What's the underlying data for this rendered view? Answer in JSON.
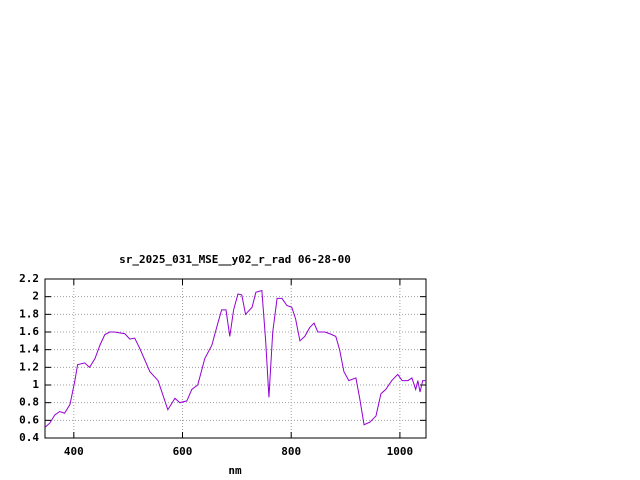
{
  "chart_data": {
    "type": "line",
    "title": "sr_2025_031_MSE__y02_r_rad 06-28-00",
    "x_label": "nm",
    "xlim": [
      347,
      1048
    ],
    "ylim": [
      0.4,
      2.2
    ],
    "xticks": [
      400,
      600,
      800,
      1000
    ],
    "yticks": [
      0.4,
      0.6,
      0.8,
      1,
      1.2,
      1.4,
      1.6,
      1.8,
      2,
      2.2
    ],
    "grid": true,
    "series": [
      {
        "color": "#9400d3",
        "x": [
          347,
          356,
          365,
          374,
          383,
          393,
          402,
          407,
          420,
          429,
          439,
          448,
          457,
          466,
          475,
          494,
          503,
          512,
          521,
          540,
          555,
          573,
          586,
          595,
          608,
          617,
          628,
          641,
          654,
          665,
          672,
          680,
          687,
          694,
          702,
          709,
          716,
          728,
          735,
          746,
          753,
          759,
          766,
          774,
          783,
          792,
          801,
          808,
          816,
          825,
          834,
          842,
          849,
          862,
          871,
          882,
          889,
          897,
          906,
          919,
          926,
          934,
          945,
          956,
          965,
          974,
          985,
          996,
          1004,
          1015,
          1022,
          1029,
          1033,
          1037,
          1042,
          1048
        ],
        "values": [
          0.52,
          0.57,
          0.66,
          0.7,
          0.68,
          0.78,
          1.05,
          1.23,
          1.25,
          1.2,
          1.3,
          1.45,
          1.57,
          1.6,
          1.6,
          1.58,
          1.52,
          1.53,
          1.42,
          1.15,
          1.05,
          0.72,
          0.85,
          0.8,
          0.82,
          0.95,
          1.0,
          1.3,
          1.45,
          1.7,
          1.85,
          1.85,
          1.55,
          1.85,
          2.03,
          2.02,
          1.8,
          1.88,
          2.05,
          2.07,
          1.5,
          0.86,
          1.6,
          1.98,
          1.98,
          1.9,
          1.88,
          1.75,
          1.5,
          1.55,
          1.65,
          1.7,
          1.6,
          1.6,
          1.58,
          1.55,
          1.4,
          1.15,
          1.05,
          1.08,
          0.85,
          0.55,
          0.58,
          0.65,
          0.9,
          0.95,
          1.05,
          1.12,
          1.05,
          1.05,
          1.08,
          0.95,
          1.05,
          0.92,
          1.05,
          1.05
        ]
      }
    ]
  }
}
